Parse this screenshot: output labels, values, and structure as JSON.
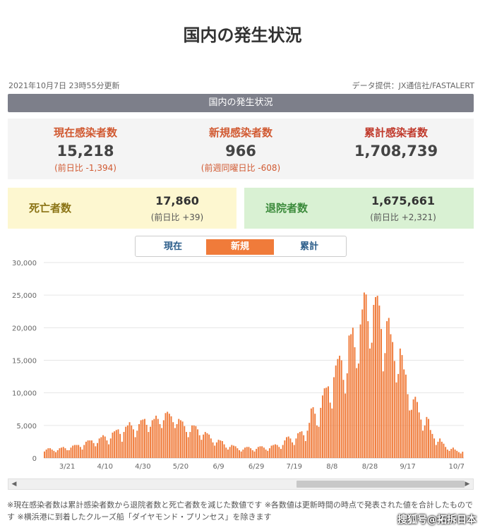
{
  "page": {
    "title": "国内の発生状況"
  },
  "meta": {
    "updated": "2021年10月7日 23時55分更新",
    "provider": "データ提供：JX通信社/FASTALERT"
  },
  "section_bar": "国内の発生状況",
  "stats": {
    "current": {
      "label": "現在感染者数",
      "value": "15,218",
      "delta": "(前日比 -1,394)"
    },
    "new": {
      "label": "新規感染者数",
      "value": "966",
      "delta": "(前週同曜日比 -608)"
    },
    "total": {
      "label": "累計感染者数",
      "value": "1,708,739"
    }
  },
  "deaths": {
    "label": "死亡者数",
    "value": "17,860",
    "delta": "(前日比 +39)"
  },
  "recovered": {
    "label": "退院者数",
    "value": "1,675,661",
    "delta": "(前日比 +2,321)"
  },
  "tabs": [
    {
      "label": "現在"
    },
    {
      "label": "新規"
    },
    {
      "label": "累計"
    }
  ],
  "colors": {
    "bar": "#f07b3a",
    "accent_tab": "#f07b3a",
    "section_bar": "#7d7f8a"
  },
  "chart_data": {
    "type": "bar",
    "title": "",
    "xlabel": "",
    "ylabel": "",
    "ylim": [
      0,
      30000
    ],
    "y_ticks": [
      "0",
      "5,000",
      "10,000",
      "15,000",
      "20,000",
      "25,000",
      "30,000"
    ],
    "x_tick_labels": [
      "3/21",
      "4/10",
      "4/30",
      "5/20",
      "6/9",
      "6/29",
      "7/19",
      "8/8",
      "8/28",
      "9/17",
      "10/7"
    ],
    "grid": true,
    "series": [
      {
        "values": [
          1000,
          1300,
          1500,
          1500,
          1300,
          1100,
          900,
          1200,
          1500,
          1600,
          1700,
          1500,
          1200,
          1200,
          1600,
          1900,
          2000,
          2000,
          2000,
          1700,
          1300,
          2000,
          2500,
          2700,
          2700,
          2700,
          2300,
          1800,
          2300,
          3000,
          3200,
          3500,
          3300,
          2700,
          2100,
          3000,
          3900,
          4100,
          4300,
          4400,
          3700,
          2500,
          4000,
          4800,
          5000,
          5500,
          5000,
          4400,
          3200,
          4200,
          5200,
          5800,
          5900,
          6000,
          5100,
          4000,
          4800,
          5800,
          6000,
          6500,
          6000,
          5200,
          4600,
          5800,
          6900,
          7100,
          6800,
          6400,
          5500,
          4600,
          5200,
          6000,
          5800,
          5600,
          4900,
          4000,
          3200,
          4000,
          5000,
          5000,
          4900,
          4400,
          3500,
          2800,
          3600,
          4000,
          3800,
          3600,
          3000,
          2400,
          1900,
          2400,
          2800,
          2700,
          2600,
          2100,
          1600,
          1300,
          1700,
          2000,
          1900,
          1800,
          1500,
          1200,
          1000,
          1300,
          1600,
          1700,
          1700,
          1500,
          1200,
          1000,
          1400,
          1700,
          1800,
          1800,
          1600,
          1300,
          1100,
          1500,
          1900,
          2000,
          2100,
          2000,
          1700,
          1400,
          2000,
          2700,
          3200,
          3300,
          3000,
          2400,
          2000,
          3000,
          3800,
          4000,
          4100,
          3500,
          2600,
          4200,
          5400,
          7600,
          7800,
          6800,
          5000,
          4800,
          7700,
          9600,
          10700,
          10800,
          11000,
          8500,
          7600,
          12400,
          14200,
          15200,
          15700,
          15000,
          12000,
          9900,
          13000,
          18800,
          19000,
          20000,
          17000,
          13800,
          14500,
          20500,
          22800,
          25400,
          25100,
          21000,
          16800,
          17700,
          23500,
          24700,
          24900,
          23400,
          19800,
          13300,
          16100,
          21000,
          21500,
          19000,
          17800,
          14900,
          11600,
          12900,
          16800,
          15800,
          13600,
          12800,
          9800,
          7300,
          7400,
          9000,
          9400,
          8600,
          7000,
          5900,
          4200,
          5000,
          6300,
          6000,
          4300,
          3700,
          3000,
          2000,
          2500,
          3000,
          2500,
          2200,
          1700,
          1300,
          1100,
          1400,
          1600,
          1300,
          1100,
          900,
          700,
          966
        ]
      }
    ]
  },
  "footnote": "※現在感染者数は累計感染者数から退院者数と死亡者数を減じた数値です ※各数値は更新時間の時点で発表された値を合計したものです ※横浜港に到着したクルーズ船「ダイヤモンド・プリンセス」を除きます",
  "watermark": "搜狐号@拓拆日本"
}
